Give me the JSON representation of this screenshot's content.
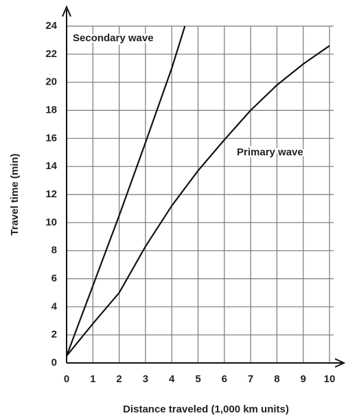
{
  "chart_data": {
    "type": "line",
    "x_label": "Distance traveled (1,000 km units)",
    "y_label": "Travel time (min)",
    "series": [
      {
        "name": "Secondary wave",
        "color": "#111111",
        "x": [
          0,
          1,
          2,
          3,
          4,
          4.5
        ],
        "values": [
          0.5,
          5.5,
          10.5,
          15.7,
          21,
          24
        ]
      },
      {
        "name": "Primary wave",
        "color": "#111111",
        "x": [
          0,
          1,
          2,
          3,
          4,
          5,
          6,
          7,
          8,
          9,
          10
        ],
        "values": [
          0.5,
          2.8,
          5,
          8.3,
          11.2,
          13.7,
          15.9,
          18,
          19.8,
          21.3,
          22.6
        ]
      }
    ],
    "xlim": [
      0,
      10
    ],
    "xticks": [
      0,
      1,
      2,
      3,
      4,
      5,
      6,
      7,
      8,
      9,
      10
    ],
    "ylim": [
      0,
      24
    ],
    "yticks": [
      0,
      2,
      4,
      6,
      8,
      10,
      12,
      14,
      16,
      18,
      20,
      22,
      24
    ],
    "grid": true
  }
}
